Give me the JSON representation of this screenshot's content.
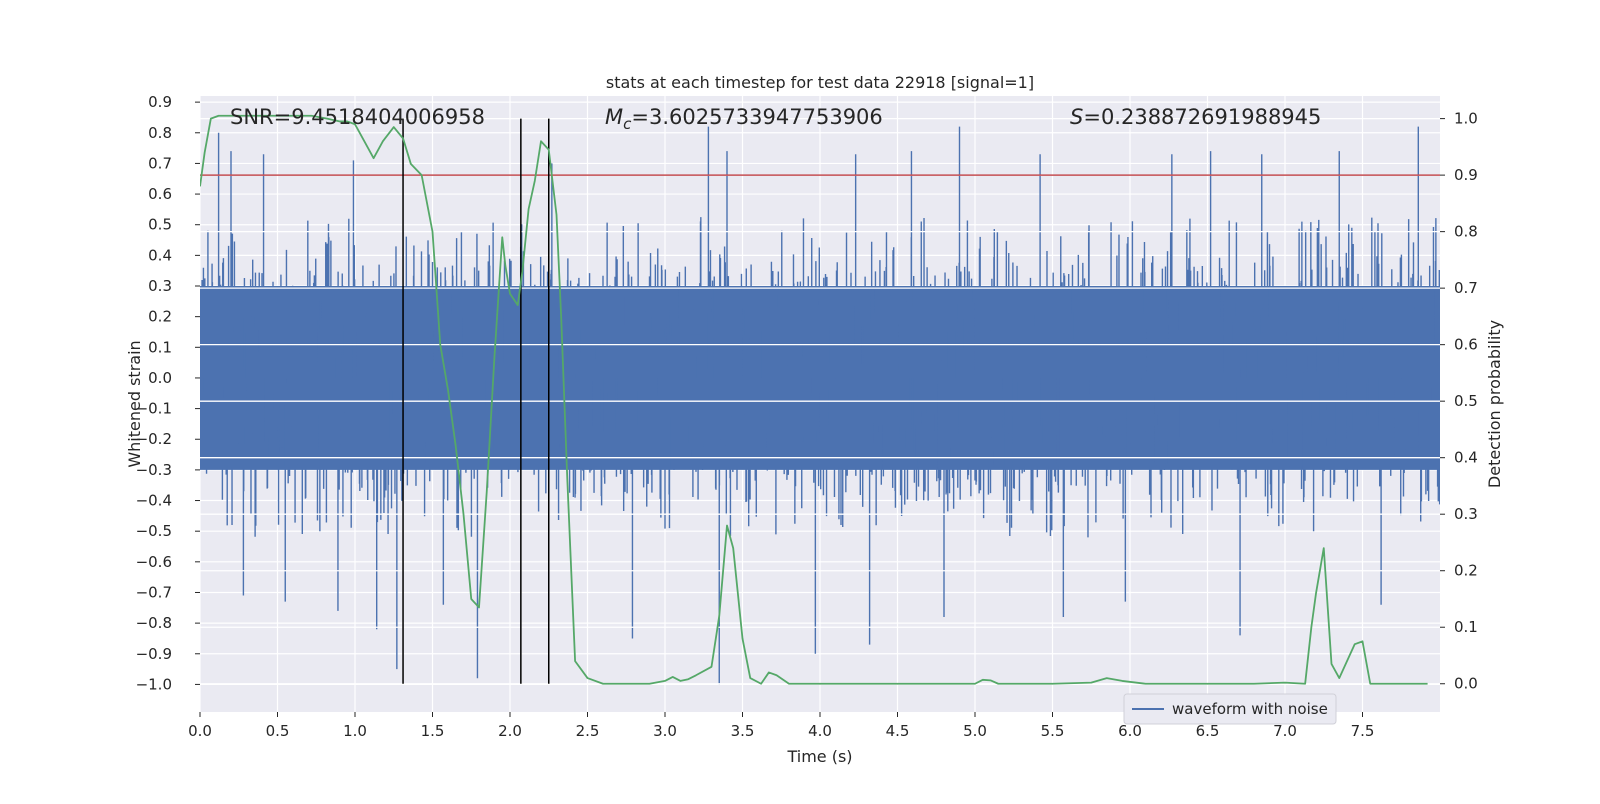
{
  "chart_data": {
    "type": "line",
    "title": "stats at each timestep for test data 22918 [signal=1]",
    "xlabel": "Time (s)",
    "ylabel": "Whitened strain",
    "ylabel_right": "Detection probability",
    "xlim": [
      0.0,
      8.0
    ],
    "ylim_left": [
      -1.09,
      0.92
    ],
    "ylim_right": [
      -0.05,
      1.04
    ],
    "x_ticks": [
      "0.0",
      "0.5",
      "1.0",
      "1.5",
      "2.0",
      "2.5",
      "3.0",
      "3.5",
      "4.0",
      "4.5",
      "5.0",
      "5.5",
      "6.0",
      "6.5",
      "7.0",
      "7.5"
    ],
    "y_ticks_left": [
      "0.9",
      "0.8",
      "0.7",
      "0.6",
      "0.5",
      "0.4",
      "0.3",
      "0.2",
      "0.1",
      "0.0",
      "−0.1",
      "−0.2",
      "−0.3",
      "−0.4",
      "−0.5",
      "−0.6",
      "−0.7",
      "−0.8",
      "−0.9",
      "−1.0"
    ],
    "y_ticks_right": [
      "1.0",
      "0.9",
      "0.8",
      "0.7",
      "0.6",
      "0.5",
      "0.4",
      "0.3",
      "0.2",
      "0.1",
      "0.0"
    ],
    "grid": true,
    "legend_position": "lower-right",
    "annotations": {
      "snr": "SNR=9.4518404006958",
      "mc_symbol": "M",
      "mc_sub": "c",
      "mc_value": "=3.6025733947753906",
      "s_symbol": "S",
      "s_value": "=0.238872691988945"
    },
    "threshold": {
      "value": 0.9,
      "axis": "right",
      "color": "#c44e52"
    },
    "vertical_lines": {
      "x": [
        1.31,
        2.07,
        2.25
      ],
      "color": "#000000"
    },
    "series": [
      {
        "name": "waveform with noise",
        "axis": "left",
        "color": "#4c72b0",
        "typical_amplitude": 0.3,
        "spike_peaks": [
          {
            "x": 0.12,
            "y": 0.8
          },
          {
            "x": 0.2,
            "y": 0.74
          },
          {
            "x": 0.28,
            "y": -0.71
          },
          {
            "x": 0.41,
            "y": 0.73
          },
          {
            "x": 0.55,
            "y": -0.73
          },
          {
            "x": 0.89,
            "y": -0.76
          },
          {
            "x": 0.99,
            "y": 0.71
          },
          {
            "x": 1.14,
            "y": -0.82
          },
          {
            "x": 1.27,
            "y": -0.95
          },
          {
            "x": 1.57,
            "y": -0.74
          },
          {
            "x": 1.79,
            "y": -0.98
          },
          {
            "x": 2.27,
            "y": 0.7
          },
          {
            "x": 2.79,
            "y": -0.85
          },
          {
            "x": 3.28,
            "y": 0.82
          },
          {
            "x": 3.35,
            "y": -1.0
          },
          {
            "x": 3.4,
            "y": 0.74
          },
          {
            "x": 3.97,
            "y": -0.9
          },
          {
            "x": 4.23,
            "y": 0.73
          },
          {
            "x": 4.32,
            "y": -0.87
          },
          {
            "x": 4.59,
            "y": 0.74
          },
          {
            "x": 4.8,
            "y": -0.78
          },
          {
            "x": 4.9,
            "y": 0.82
          },
          {
            "x": 5.42,
            "y": 0.73
          },
          {
            "x": 5.57,
            "y": -0.78
          },
          {
            "x": 5.97,
            "y": -0.73
          },
          {
            "x": 6.27,
            "y": 0.73
          },
          {
            "x": 6.52,
            "y": 0.74
          },
          {
            "x": 6.71,
            "y": -0.84
          },
          {
            "x": 6.85,
            "y": 0.73
          },
          {
            "x": 7.35,
            "y": 0.74
          },
          {
            "x": 7.86,
            "y": 0.82
          },
          {
            "x": 7.62,
            "y": -0.74
          }
        ]
      },
      {
        "name": "",
        "axis": "right",
        "color": "#55a868",
        "x": [
          0.0,
          0.03,
          0.07,
          0.12,
          0.2,
          0.3,
          0.5,
          0.6,
          0.72,
          0.82,
          0.9,
          0.95,
          1.0,
          1.06,
          1.12,
          1.18,
          1.25,
          1.31,
          1.36,
          1.43,
          1.5,
          1.55,
          1.6,
          1.65,
          1.7,
          1.75,
          1.8,
          1.85,
          1.9,
          1.95,
          1.97,
          2.0,
          2.05,
          2.08,
          2.12,
          2.16,
          2.2,
          2.25,
          2.3,
          2.33,
          2.37,
          2.42,
          2.5,
          2.6,
          2.7,
          2.9,
          3.0,
          3.05,
          3.1,
          3.15,
          3.2,
          3.3,
          3.35,
          3.4,
          3.44,
          3.5,
          3.55,
          3.62,
          3.67,
          3.72,
          3.8,
          4.0,
          4.3,
          4.6,
          5.0,
          5.05,
          5.1,
          5.15,
          5.25,
          5.5,
          5.75,
          5.85,
          5.95,
          6.1,
          6.4,
          6.8,
          7.0,
          7.13,
          7.17,
          7.2,
          7.25,
          7.3,
          7.35,
          7.4,
          7.45,
          7.5,
          7.55,
          7.6,
          7.7,
          7.92
        ],
        "y": [
          0.88,
          0.94,
          1.0,
          1.005,
          1.005,
          1.005,
          1.005,
          1.005,
          1.005,
          1.0,
          0.995,
          0.995,
          0.99,
          0.96,
          0.93,
          0.96,
          0.985,
          0.965,
          0.92,
          0.9,
          0.8,
          0.6,
          0.52,
          0.42,
          0.3,
          0.15,
          0.135,
          0.34,
          0.58,
          0.79,
          0.74,
          0.69,
          0.67,
          0.73,
          0.84,
          0.89,
          0.96,
          0.945,
          0.83,
          0.65,
          0.36,
          0.04,
          0.01,
          0.0,
          0.0,
          0.0,
          0.005,
          0.012,
          0.005,
          0.008,
          0.015,
          0.03,
          0.12,
          0.28,
          0.24,
          0.08,
          0.01,
          0.0,
          0.02,
          0.015,
          0.0,
          0.0,
          0.0,
          0.0,
          0.0,
          0.007,
          0.006,
          0.0,
          0.0,
          0.0,
          0.002,
          0.01,
          0.005,
          0.0,
          0.0,
          0.0,
          0.002,
          0.0,
          0.1,
          0.16,
          0.24,
          0.035,
          0.01,
          0.04,
          0.07,
          0.075,
          0.0,
          0.0,
          0.0,
          0.0
        ]
      }
    ]
  }
}
